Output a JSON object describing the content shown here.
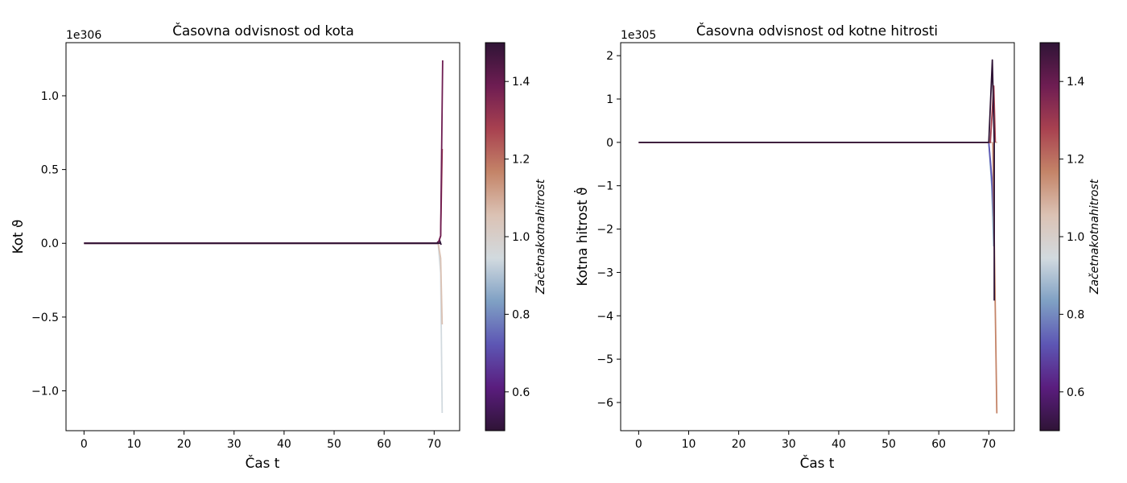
{
  "colormap": "twilight_shifted",
  "colorbar_stops": [
    "#2f1436",
    "#5a1d7e",
    "#5d56b4",
    "#7fa0c4",
    "#d2dadf",
    "#dbc2b4",
    "#c48468",
    "#a84150",
    "#6e1d52",
    "#2f1436"
  ],
  "chart_data": [
    {
      "type": "line",
      "title": "Časovna odvisnost od kota",
      "xlabel": "Čas t",
      "ylabel": "Kot ϑ",
      "y_offset_text": "1e306",
      "y_scale_exponent": 306,
      "xlim": [
        -3.6,
        75.1
      ],
      "ylim": [
        -1.27,
        1.36
      ],
      "xticks": [
        0,
        10,
        20,
        30,
        40,
        50,
        60,
        70
      ],
      "yticks": [
        1.0,
        0.5,
        0.0,
        -0.5,
        -1.0
      ],
      "ytick_labels": [
        "1.0",
        "0.5",
        "0.0",
        "−0.5",
        "−1.0"
      ],
      "colorbar": {
        "label": "Začetnakotnahitrost",
        "range": [
          0.5,
          1.5
        ],
        "ticks": [
          1.4,
          1.2,
          1.0,
          0.8,
          0.6
        ],
        "tick_labels": [
          "1.4",
          "1.2",
          "1.0",
          "0.8",
          "0.6"
        ]
      },
      "series": [
        {
          "param": 0.5,
          "color": "#2f1436",
          "x": [
            0,
            70.5,
            71.1,
            71.4
          ],
          "y": [
            0,
            0,
            0.02,
            -0.01
          ]
        },
        {
          "param": 1.0,
          "color": "#d2dadf",
          "x": [
            0,
            70.8,
            71.3,
            71.6
          ],
          "y": [
            0,
            0,
            -0.2,
            -1.15
          ]
        },
        {
          "param": 1.1,
          "color": "#dbc2b4",
          "x": [
            0,
            70.8,
            71.3,
            71.6
          ],
          "y": [
            0,
            0,
            -0.1,
            -0.55
          ]
        },
        {
          "param": 1.3,
          "color": "#a84150",
          "x": [
            0,
            70.8,
            71.3,
            71.6
          ],
          "y": [
            0,
            0,
            0.05,
            0.64
          ]
        },
        {
          "param": 1.4,
          "color": "#6e1d52",
          "x": [
            0,
            70.8,
            71.3,
            71.7
          ],
          "y": [
            0,
            0,
            0.05,
            1.24
          ]
        },
        {
          "param": 1.5,
          "color": "#2f1436",
          "x": [
            0,
            70.5,
            71.2
          ],
          "y": [
            0,
            0,
            0
          ]
        }
      ]
    },
    {
      "type": "line",
      "title": "Časovna odvisnost od kotne hitrosti",
      "xlabel": "Čas t",
      "ylabel": "Kotna hitrost ϑ̇",
      "y_offset_text": "1e305",
      "y_scale_exponent": 305,
      "xlim": [
        -3.6,
        75.1
      ],
      "ylim": [
        -6.65,
        2.3
      ],
      "xticks": [
        0,
        10,
        20,
        30,
        40,
        50,
        60,
        70
      ],
      "yticks": [
        2,
        1,
        0,
        -1,
        -2,
        -3,
        -4,
        -5,
        -6
      ],
      "ytick_labels": [
        "2",
        "1",
        "0",
        "−1",
        "−2",
        "−3",
        "−4",
        "−5",
        "−6"
      ],
      "colorbar": {
        "label": "Začetnakotnahitrost",
        "range": [
          0.5,
          1.5
        ],
        "ticks": [
          1.4,
          1.2,
          1.0,
          0.8,
          0.6
        ],
        "tick_labels": [
          "1.4",
          "1.2",
          "1.0",
          "0.8",
          "0.6"
        ]
      },
      "series": [
        {
          "param": 0.8,
          "color": "#7fa0c4",
          "x": [
            0,
            70.0,
            70.6,
            71.0
          ],
          "y": [
            0,
            0,
            -1.0,
            -2.4
          ]
        },
        {
          "param": 0.6,
          "color": "#5d56b4",
          "x": [
            0,
            70.0,
            70.6,
            71.0
          ],
          "y": [
            0,
            0,
            -0.8,
            -1.7
          ]
        },
        {
          "param": 1.2,
          "color": "#c48468",
          "x": [
            0,
            70.3,
            70.8,
            71.6
          ],
          "y": [
            0,
            0,
            0,
            -6.25
          ]
        },
        {
          "param": 1.1,
          "color": "#dbc2b4",
          "x": [
            0,
            70.3,
            71.2,
            71.7
          ],
          "y": [
            0,
            0,
            0,
            0
          ]
        },
        {
          "param": 1.3,
          "color": "#a84150",
          "x": [
            0,
            70.3,
            71.0,
            71.3
          ],
          "y": [
            0,
            0,
            1.3,
            0
          ]
        },
        {
          "param": 1.5,
          "color": "#2f1436",
          "x": [
            0,
            70.0,
            70.7,
            71.1,
            71.1
          ],
          "y": [
            0,
            0,
            1.9,
            0,
            -3.65
          ]
        }
      ]
    }
  ]
}
